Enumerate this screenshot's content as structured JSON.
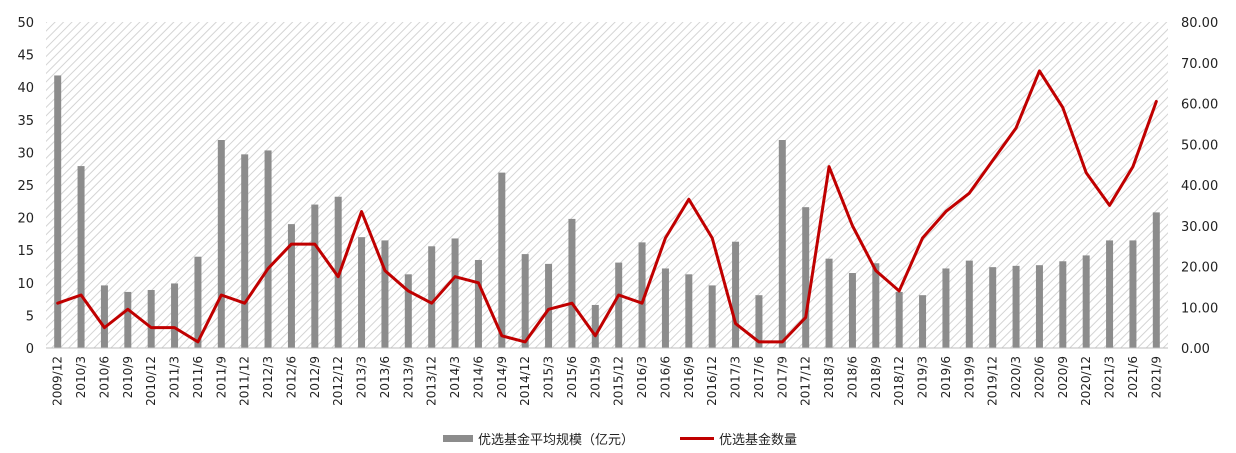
{
  "chart_data": {
    "type": "bar",
    "categories": [
      "2009/12",
      "2010/3",
      "2010/6",
      "2010/9",
      "2010/12",
      "2011/3",
      "2011/6",
      "2011/9",
      "2011/12",
      "2012/3",
      "2012/6",
      "2012/9",
      "2012/12",
      "2013/3",
      "2013/6",
      "2013/9",
      "2013/12",
      "2014/3",
      "2014/6",
      "2014/9",
      "2014/12",
      "2015/3",
      "2015/6",
      "2015/9",
      "2015/12",
      "2016/3",
      "2016/6",
      "2016/9",
      "2016/12",
      "2017/3",
      "2017/6",
      "2017/9",
      "2017/12",
      "2018/3",
      "2018/6",
      "2018/9",
      "2018/12",
      "2019/3",
      "2019/6",
      "2019/9",
      "2019/12",
      "2020/3",
      "2020/6",
      "2020/9",
      "2020/12",
      "2021/3",
      "2021/6",
      "2021/9"
    ],
    "series": [
      {
        "name": "优选基金平均规模（亿元）",
        "type": "bar",
        "axis": "left",
        "color": "#8c8c8c",
        "values": [
          41.8,
          27.9,
          9.6,
          8.6,
          8.9,
          9.9,
          14.0,
          31.9,
          29.7,
          30.3,
          19.0,
          22.0,
          23.2,
          17.0,
          16.5,
          11.3,
          15.6,
          16.8,
          13.5,
          26.9,
          14.4,
          12.9,
          19.8,
          6.6,
          13.1,
          16.2,
          12.2,
          11.3,
          9.6,
          16.3,
          8.1,
          31.9,
          21.6,
          13.7,
          11.5,
          13.0,
          8.6,
          8.1,
          12.2,
          13.4,
          12.4,
          12.6,
          12.7,
          13.3,
          14.2,
          16.5,
          16.5,
          20.8
        ]
      },
      {
        "name": "优选基金数量",
        "type": "line",
        "axis": "right",
        "color": "#c00000",
        "values": [
          11,
          13,
          5,
          9.5,
          5,
          5,
          1.5,
          13,
          11,
          19.5,
          25.5,
          25.5,
          17.5,
          33.5,
          19,
          14,
          11,
          17.5,
          16,
          3,
          1.5,
          9.5,
          11,
          3,
          13,
          11,
          27,
          36.5,
          27,
          6,
          1.5,
          1.5,
          7.5,
          44.5,
          30,
          19,
          14,
          27,
          33.5,
          38,
          46,
          54,
          68,
          59,
          43,
          35,
          44.5,
          60.5
        ]
      }
    ],
    "y_left": {
      "lim": [
        0,
        50
      ],
      "ticks": [
        "0",
        "5",
        "10",
        "15",
        "20",
        "25",
        "30",
        "35",
        "40",
        "45",
        "50"
      ]
    },
    "y_right": {
      "lim": [
        0,
        80
      ],
      "ticks": [
        "0.00",
        "10.00",
        "20.00",
        "30.00",
        "40.00",
        "50.00",
        "60.00",
        "70.00",
        "80.00"
      ]
    },
    "legend": {
      "position": "bottom",
      "bar_label": "优选基金平均规模（亿元）",
      "line_label": "优选基金数量"
    },
    "grid": false,
    "plot_background": "diagonal-hatch"
  }
}
